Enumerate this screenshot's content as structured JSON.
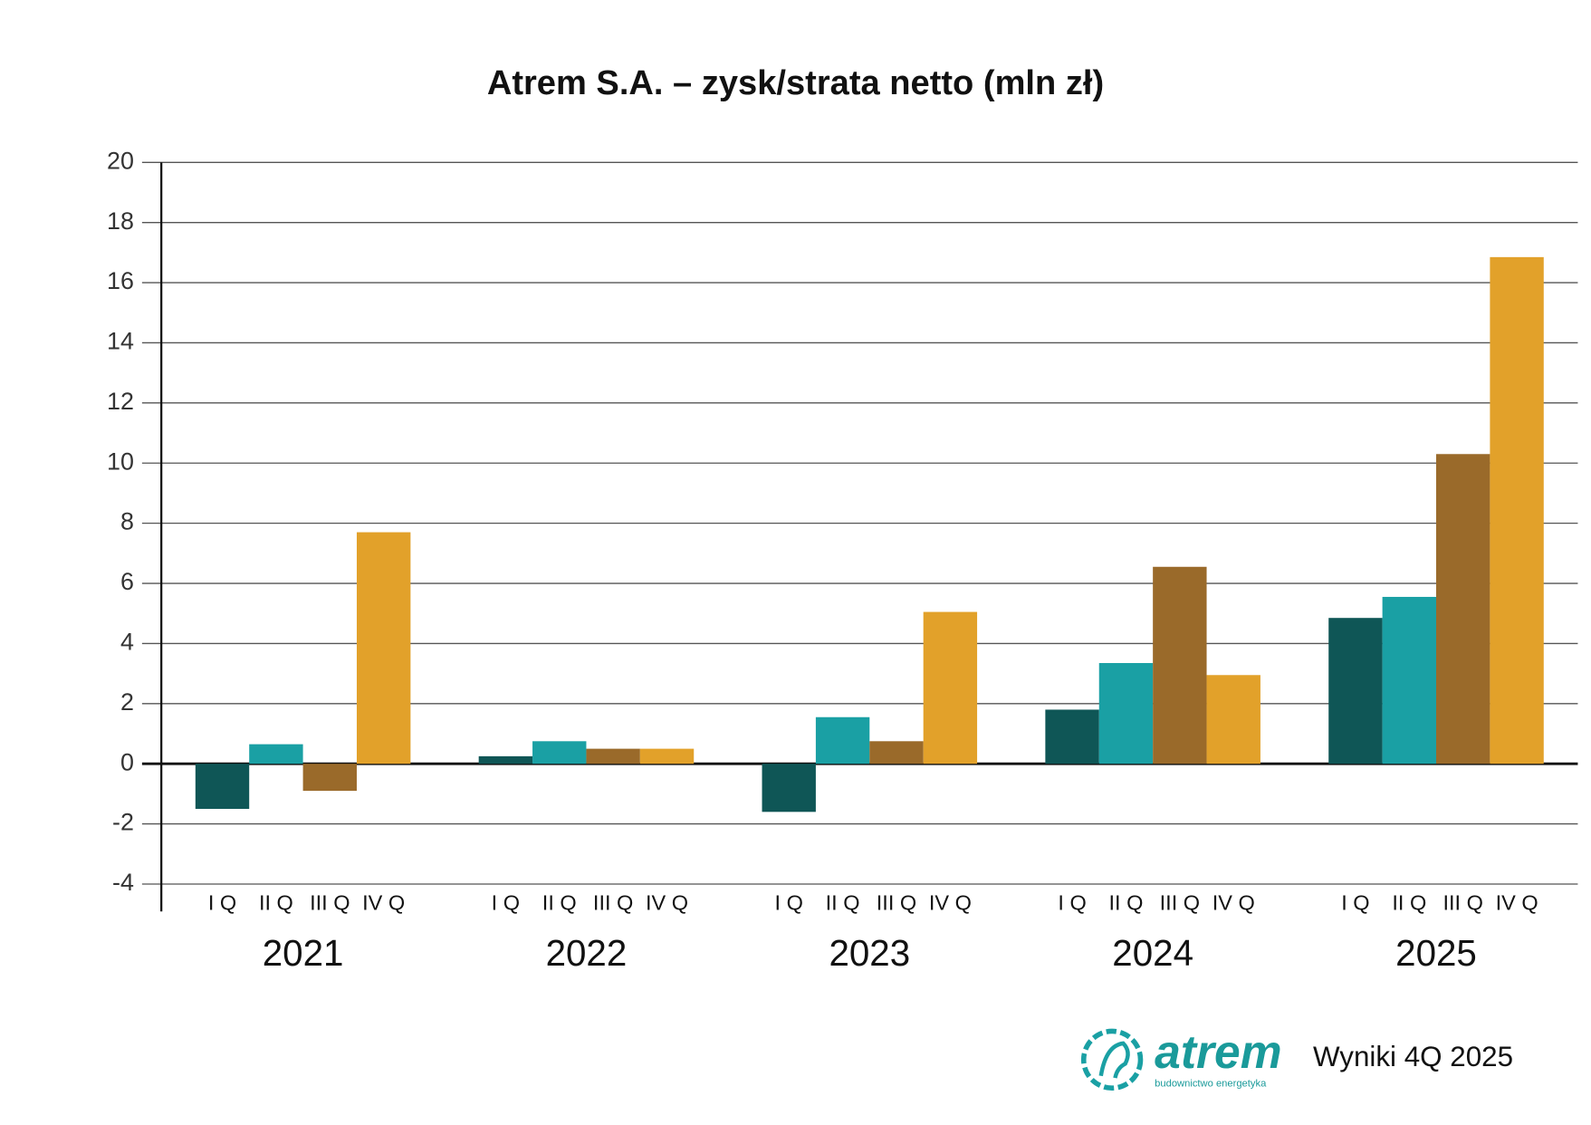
{
  "chart_data": {
    "type": "bar",
    "title": "Atrem S.A. – zysk/strata netto (mln zł)",
    "categories": [
      "2021",
      "2022",
      "2023",
      "2024",
      "2025"
    ],
    "series": [
      {
        "name": "I Q",
        "color": "#0f5656",
        "values": [
          -1.5,
          0.25,
          -1.6,
          1.8,
          4.85
        ]
      },
      {
        "name": "II Q",
        "color": "#1aa0a4",
        "values": [
          0.65,
          0.75,
          1.55,
          3.35,
          5.55
        ]
      },
      {
        "name": "III Q",
        "color": "#9a6a2a",
        "values": [
          -0.9,
          0.5,
          0.75,
          6.55,
          10.3
        ]
      },
      {
        "name": "IV Q",
        "color": "#e2a12a",
        "values": [
          7.7,
          0.5,
          5.05,
          2.95,
          16.85
        ]
      }
    ],
    "ylim": [
      -4,
      20
    ],
    "yticks": [
      -4,
      -2,
      0,
      2,
      4,
      6,
      8,
      10,
      12,
      14,
      16,
      18,
      20
    ],
    "grid": true
  },
  "footer": {
    "logo": "atrem",
    "logo_tagline": "budownictwo energetyka",
    "caption": "Wyniki 4Q 2025"
  }
}
